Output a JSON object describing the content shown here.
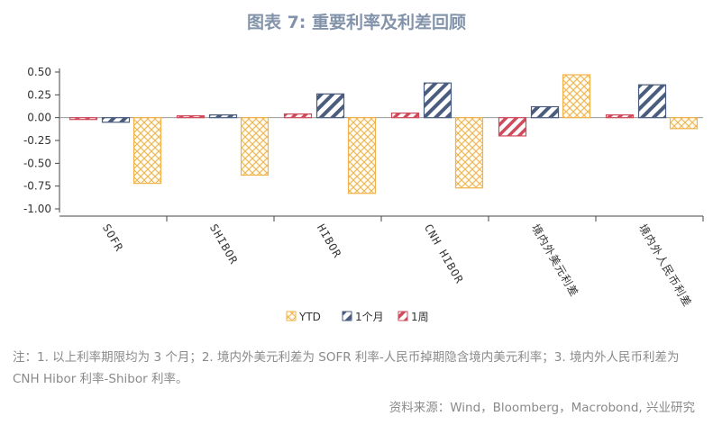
{
  "title": "图表 7: 重要利率及利差回顾",
  "note": "注：1. 以上利率期限均为 3 个月；2. 境内外美元利差为 SOFR 利率-人民币掉期隐含境内美元利率；3. 境内外人民币利差为 CNH Hibor 利率-Shibor 利率。",
  "source": "资料来源：Wind，Bloomberg，Macrobond, 兴业研究",
  "colors": {
    "ytd": "#f0b24a",
    "month": "#4b5d7e",
    "week": "#cf4a5b"
  },
  "chart_data": {
    "type": "bar",
    "categories": [
      "SOFR",
      "SHIBOR",
      "HIBOR",
      "CNH HIBOR",
      "境内外美元利差",
      "境内外人民币利差"
    ],
    "series": [
      {
        "name": "YTD",
        "values": [
          -0.72,
          -0.63,
          -0.83,
          -0.77,
          0.47,
          -0.12
        ]
      },
      {
        "name": "1个月",
        "values": [
          -0.05,
          0.03,
          0.26,
          0.38,
          0.12,
          0.36
        ]
      },
      {
        "name": "1周",
        "values": [
          -0.02,
          0.02,
          0.04,
          0.05,
          -0.2,
          0.03
        ]
      }
    ],
    "ylim": [
      -1.0,
      0.5
    ],
    "yticks": [
      "0.50",
      "0.25",
      "0.00",
      "-0.25",
      "-0.50",
      "-0.75",
      "-1.00"
    ],
    "grid": false,
    "legend_position": "bottom"
  }
}
